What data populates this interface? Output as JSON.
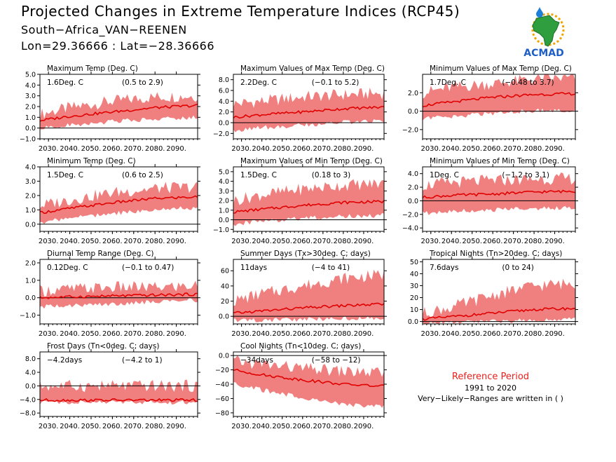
{
  "header": {
    "title": "Projected Changes in Extreme Temperature Indices (RCP45)",
    "location": "South−Africa_VAN−REENEN",
    "coords": "Lon=29.36666 : Lat=−28.36666"
  },
  "logo": {
    "text": "ACMAD"
  },
  "reference": {
    "title": "Reference Period",
    "years": "1991 to 2020",
    "note": "Very−Likely−Ranges are written in ( )"
  },
  "colors": {
    "band": "#f08080",
    "line": "#e00000",
    "ref_title": "#e8201c"
  },
  "xticks": [
    "2030.",
    "2040.",
    "2050.",
    "2060.",
    "2070.",
    "2080.",
    "2090."
  ],
  "chart_data": [
    {
      "type": "area",
      "title": "Maximum Temp (Deg. C)",
      "change": "1.6Deg. C",
      "range": "(0.5 to 2.9)",
      "xlim": [
        2026,
        2100
      ],
      "ylim": [
        -1,
        5
      ],
      "yticks": [
        -1.0,
        0.0,
        1.0,
        2.0,
        3.0,
        4.0,
        5.0
      ],
      "series": [
        {
          "x": [
            2026,
            2040,
            2060,
            2080,
            2100
          ],
          "y": [
            0.7,
            1.1,
            1.5,
            1.9,
            2.1
          ],
          "band_lo": [
            0.2,
            0.5,
            0.8,
            1.1,
            1.2
          ],
          "band_hi": [
            1.3,
            1.9,
            2.5,
            2.9,
            3.0
          ]
        }
      ]
    },
    {
      "type": "area",
      "title": "Maximum Values of Max Temp (Deg. C)",
      "change": "2.2Deg. C",
      "range": "(−0.1 to 5.2)",
      "xlim": [
        2026,
        2100
      ],
      "ylim": [
        -3,
        9
      ],
      "yticks": [
        -2.0,
        0.0,
        2.0,
        4.0,
        6.0,
        8.0
      ],
      "series": [
        {
          "x": [
            2026,
            2040,
            2060,
            2080,
            2100
          ],
          "y": [
            1.0,
            1.5,
            2.0,
            2.6,
            2.9
          ],
          "band_lo": [
            -1.0,
            -0.5,
            0.0,
            0.5,
            0.8
          ],
          "band_hi": [
            3.5,
            4.0,
            4.8,
            5.2,
            5.5
          ]
        }
      ]
    },
    {
      "type": "area",
      "title": "Minimum Values of Max Temp (Deg. C)",
      "change": "1.7Deg. C",
      "range": "(−0.48 to 3.7)",
      "xlim": [
        2026,
        2100
      ],
      "ylim": [
        -3,
        4
      ],
      "yticks": [
        -2.0,
        0.0,
        2.0
      ],
      "series": [
        {
          "x": [
            2026,
            2040,
            2060,
            2080,
            2100
          ],
          "y": [
            0.6,
            1.0,
            1.5,
            1.8,
            1.9
          ],
          "band_lo": [
            -0.6,
            -0.3,
            0.0,
            0.3,
            0.4
          ],
          "band_hi": [
            2.0,
            2.6,
            3.0,
            3.5,
            3.6
          ]
        }
      ]
    },
    {
      "type": "area",
      "title": "Minimum Temp (Deg. C)",
      "change": "1.5Deg. C",
      "range": "(0.6 to 2.5)",
      "xlim": [
        2026,
        2100
      ],
      "ylim": [
        -0.5,
        4
      ],
      "yticks": [
        0.0,
        1.0,
        2.0,
        3.0,
        4.0
      ],
      "series": [
        {
          "x": [
            2026,
            2040,
            2060,
            2080,
            2100
          ],
          "y": [
            0.8,
            1.1,
            1.5,
            1.8,
            1.9
          ],
          "band_lo": [
            0.3,
            0.6,
            0.9,
            1.2,
            1.3
          ],
          "band_hi": [
            1.3,
            1.7,
            2.2,
            2.5,
            2.6
          ]
        }
      ]
    },
    {
      "type": "area",
      "title": "Maximum Values of Min Temp (Deg. C)",
      "change": "1.5Deg. C",
      "range": "(0.18 to 3)",
      "xlim": [
        2026,
        2100
      ],
      "ylim": [
        -1.2,
        5.5
      ],
      "yticks": [
        -1.0,
        0.0,
        1.0,
        2.0,
        3.0,
        4.0,
        5.0
      ],
      "series": [
        {
          "x": [
            2026,
            2040,
            2060,
            2080,
            2100
          ],
          "y": [
            0.8,
            1.1,
            1.5,
            1.8,
            1.9
          ],
          "band_lo": [
            -0.2,
            0.1,
            0.4,
            0.6,
            0.7
          ],
          "band_hi": [
            2.0,
            2.6,
            3.2,
            3.6,
            3.8
          ]
        }
      ]
    },
    {
      "type": "area",
      "title": "Minimum Values of Min Temp (Deg. C)",
      "change": "1Deg. C",
      "range": "(−1.2 to 3.1)",
      "xlim": [
        2026,
        2100
      ],
      "ylim": [
        -4.5,
        5
      ],
      "yticks": [
        -4.0,
        -2.0,
        0.0,
        2.0,
        4.0
      ],
      "series": [
        {
          "x": [
            2026,
            2040,
            2060,
            2080,
            2100
          ],
          "y": [
            0.5,
            0.8,
            1.0,
            1.3,
            1.4
          ],
          "band_lo": [
            -1.5,
            -1.2,
            -1.0,
            -0.8,
            -0.6
          ],
          "band_hi": [
            2.3,
            2.7,
            3.0,
            3.2,
            3.3
          ]
        }
      ]
    },
    {
      "type": "area",
      "title": "Diurnal Temp Range (Deg. C)",
      "change": "0.12Deg. C",
      "range": "(−0.1 to 0.47)",
      "xlim": [
        2026,
        2100
      ],
      "ylim": [
        -1.5,
        2.2
      ],
      "yticks": [
        -1.0,
        0.0,
        1.0,
        2.0
      ],
      "series": [
        {
          "x": [
            2026,
            2040,
            2060,
            2080,
            2100
          ],
          "y": [
            0.0,
            0.05,
            0.1,
            0.15,
            0.2
          ],
          "band_lo": [
            -0.4,
            -0.3,
            -0.2,
            -0.1,
            0.0
          ],
          "band_hi": [
            0.4,
            0.5,
            0.6,
            0.6,
            0.7
          ]
        }
      ]
    },
    {
      "type": "area",
      "title": "Summer Days (Tx>30deg. C; days)",
      "change": "11days",
      "range": "(−4 to 41)",
      "xlim": [
        2026,
        2100
      ],
      "ylim": [
        -10,
        75
      ],
      "yticks": [
        0,
        20,
        40,
        60
      ],
      "series": [
        {
          "x": [
            2026,
            2040,
            2060,
            2080,
            2100
          ],
          "y": [
            4,
            7,
            11,
            14,
            16
          ],
          "band_lo": [
            -3,
            -2,
            -1,
            0,
            0
          ],
          "band_hi": [
            20,
            30,
            40,
            50,
            55
          ]
        }
      ]
    },
    {
      "type": "area",
      "title": "Tropical Nights (Tn>20deg. C; days)",
      "change": "7.6days",
      "range": "(0 to 24)",
      "xlim": [
        2026,
        2100
      ],
      "ylim": [
        -2,
        52
      ],
      "yticks": [
        0,
        10,
        20,
        30,
        40,
        50
      ],
      "series": [
        {
          "x": [
            2026,
            2040,
            2060,
            2080,
            2100
          ],
          "y": [
            2,
            4,
            7,
            10,
            11
          ],
          "band_lo": [
            0,
            1,
            2,
            3,
            4
          ],
          "band_hi": [
            7,
            12,
            22,
            30,
            32
          ]
        }
      ]
    },
    {
      "type": "area",
      "title": "Frost Days (Tn<0deg. C; days)",
      "change": "−4.2days",
      "range": "(−4.2 to 1)",
      "xlim": [
        2026,
        2100
      ],
      "ylim": [
        -9,
        10
      ],
      "yticks": [
        -8.0,
        -4.0,
        0.0,
        4.0,
        8.0
      ],
      "series": [
        {
          "x": [
            2026,
            2040,
            2060,
            2080,
            2100
          ],
          "y": [
            -4.2,
            -4.2,
            -4.2,
            -4.2,
            -4.2
          ],
          "band_lo": [
            -4.2,
            -4.2,
            -4.2,
            -4.2,
            -4.2
          ],
          "band_hi": [
            0.0,
            0.0,
            0.0,
            0.0,
            0.0
          ]
        }
      ]
    },
    {
      "type": "area",
      "title": "Cool Nights (Tn<10deg. C; days)",
      "change": "−34days",
      "range": "(−58 to −12)",
      "xlim": [
        2026,
        2100
      ],
      "ylim": [
        -85,
        5
      ],
      "yticks": [
        -80,
        -60,
        -40,
        -20,
        0
      ],
      "series": [
        {
          "x": [
            2026,
            2040,
            2060,
            2080,
            2100
          ],
          "y": [
            -20,
            -27,
            -34,
            -40,
            -43
          ],
          "band_lo": [
            -35,
            -45,
            -55,
            -65,
            -68
          ],
          "band_hi": [
            -8,
            -12,
            -18,
            -22,
            -25
          ]
        }
      ]
    }
  ]
}
